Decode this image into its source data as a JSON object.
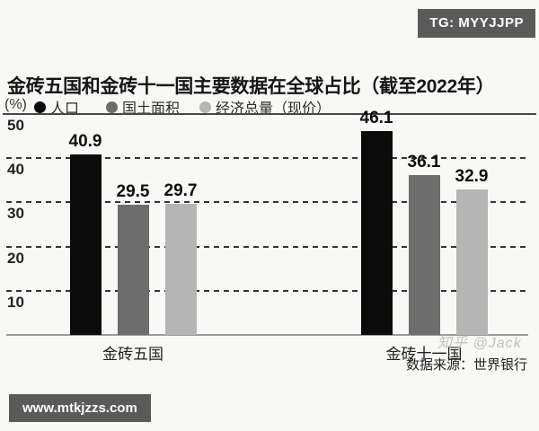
{
  "badges": {
    "telegram": "TG: MYYJJPP",
    "website": "www.mtkjzzs.com"
  },
  "chart_data": {
    "type": "bar",
    "title": "金砖五国和金砖十一国主要数据在全球占比（截至2022年）",
    "unit_label": "(%)",
    "categories": [
      "金砖五国",
      "金砖十一国"
    ],
    "series": [
      {
        "name": "人口",
        "color": "#0b0b0b",
        "values": [
          40.9,
          46.1
        ]
      },
      {
        "name": "国土面积",
        "color": "#6d6d6d",
        "values": [
          29.5,
          36.1
        ]
      },
      {
        "name": "经济总量（现价）",
        "color": "#b5b5b5",
        "values": [
          29.7,
          32.9
        ]
      }
    ],
    "ylim": [
      0,
      50
    ],
    "yticks": [
      10,
      20,
      30,
      40,
      50
    ],
    "grid": "horizontal-dashed",
    "legend_position": "top-left"
  },
  "source_note": "数据来源：世界银行",
  "watermark": "知乎 @Jack"
}
